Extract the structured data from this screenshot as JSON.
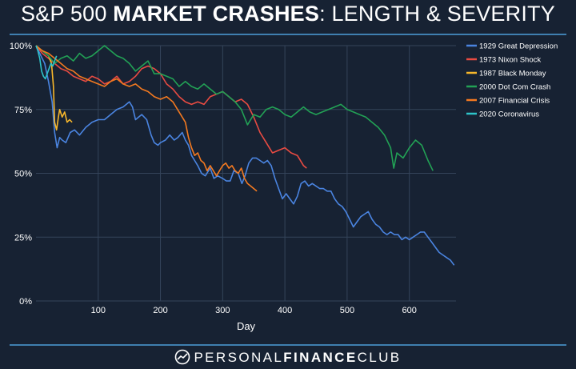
{
  "title": {
    "part1": "S&P 500 ",
    "part2": "MARKET CRASHES",
    "part3": ": LENGTH & SEVERITY"
  },
  "footer": {
    "brand_light1": "PERSONAL",
    "brand_bold": "FINANCE",
    "brand_light2": "CLUB"
  },
  "chart_data": {
    "type": "line",
    "title": "S&P 500 MARKET CRASHES: LENGTH & SEVERITY",
    "xlabel": "Day",
    "ylabel": "",
    "xlim": [
      0,
      675
    ],
    "ylim": [
      0,
      100
    ],
    "x_ticks": [
      100,
      200,
      300,
      400,
      500,
      600
    ],
    "y_ticks": [
      0,
      25,
      50,
      75,
      100
    ],
    "y_tick_labels": [
      "0%",
      "25%",
      "50%",
      "75%",
      "100%"
    ],
    "grid": true,
    "legend_position": "right",
    "series": [
      {
        "name": "1929 Great Depression",
        "color": "#4a84e0",
        "points": [
          [
            0,
            100
          ],
          [
            8,
            96
          ],
          [
            14,
            93
          ],
          [
            20,
            86
          ],
          [
            26,
            78
          ],
          [
            30,
            66
          ],
          [
            34,
            60
          ],
          [
            38,
            64
          ],
          [
            42,
            63
          ],
          [
            48,
            62
          ],
          [
            55,
            66
          ],
          [
            62,
            67
          ],
          [
            70,
            65
          ],
          [
            80,
            68
          ],
          [
            90,
            70
          ],
          [
            100,
            71
          ],
          [
            110,
            71
          ],
          [
            120,
            73
          ],
          [
            130,
            75
          ],
          [
            140,
            76
          ],
          [
            150,
            78
          ],
          [
            155,
            76
          ],
          [
            160,
            71
          ],
          [
            165,
            72
          ],
          [
            170,
            73
          ],
          [
            178,
            71
          ],
          [
            185,
            65
          ],
          [
            190,
            62
          ],
          [
            196,
            61
          ],
          [
            200,
            62
          ],
          [
            208,
            63
          ],
          [
            215,
            65
          ],
          [
            222,
            63
          ],
          [
            228,
            64
          ],
          [
            235,
            66
          ],
          [
            240,
            63
          ],
          [
            245,
            61
          ],
          [
            250,
            57
          ],
          [
            255,
            55
          ],
          [
            260,
            53
          ],
          [
            266,
            50
          ],
          [
            272,
            49
          ],
          [
            280,
            52
          ],
          [
            286,
            48
          ],
          [
            292,
            49
          ],
          [
            300,
            48
          ],
          [
            306,
            47
          ],
          [
            312,
            47
          ],
          [
            318,
            51
          ],
          [
            325,
            50
          ],
          [
            331,
            46
          ],
          [
            336,
            49
          ],
          [
            342,
            54
          ],
          [
            348,
            56
          ],
          [
            354,
            56
          ],
          [
            360,
            55
          ],
          [
            366,
            54
          ],
          [
            372,
            55
          ],
          [
            378,
            53
          ],
          [
            384,
            48
          ],
          [
            390,
            44
          ],
          [
            396,
            40
          ],
          [
            402,
            42
          ],
          [
            408,
            40
          ],
          [
            414,
            38
          ],
          [
            420,
            41
          ],
          [
            426,
            46
          ],
          [
            432,
            47
          ],
          [
            438,
            45
          ],
          [
            444,
            46
          ],
          [
            450,
            45
          ],
          [
            456,
            44
          ],
          [
            462,
            44
          ],
          [
            468,
            43
          ],
          [
            474,
            43
          ],
          [
            480,
            40
          ],
          [
            486,
            38
          ],
          [
            492,
            37
          ],
          [
            498,
            35
          ],
          [
            504,
            32
          ],
          [
            510,
            29
          ],
          [
            516,
            31
          ],
          [
            522,
            33
          ],
          [
            528,
            34
          ],
          [
            534,
            35
          ],
          [
            540,
            32
          ],
          [
            546,
            30
          ],
          [
            552,
            29
          ],
          [
            558,
            27
          ],
          [
            564,
            26
          ],
          [
            570,
            27
          ],
          [
            576,
            26
          ],
          [
            582,
            26
          ],
          [
            588,
            24
          ],
          [
            594,
            25
          ],
          [
            600,
            24
          ],
          [
            606,
            25
          ],
          [
            612,
            26
          ],
          [
            618,
            27
          ],
          [
            624,
            27
          ],
          [
            630,
            25
          ],
          [
            636,
            23
          ],
          [
            642,
            21
          ],
          [
            648,
            19
          ],
          [
            654,
            18
          ],
          [
            660,
            17
          ],
          [
            666,
            16
          ],
          [
            672,
            14
          ]
        ]
      },
      {
        "name": "1973 Nixon Shock",
        "color": "#e94b42",
        "points": [
          [
            0,
            100
          ],
          [
            10,
            97
          ],
          [
            20,
            95
          ],
          [
            30,
            93
          ],
          [
            40,
            91
          ],
          [
            50,
            90
          ],
          [
            60,
            88
          ],
          [
            70,
            87
          ],
          [
            80,
            86
          ],
          [
            90,
            88
          ],
          [
            100,
            87
          ],
          [
            110,
            85
          ],
          [
            120,
            86
          ],
          [
            130,
            88
          ],
          [
            140,
            85
          ],
          [
            150,
            86
          ],
          [
            160,
            88
          ],
          [
            170,
            91
          ],
          [
            180,
            92
          ],
          [
            190,
            91
          ],
          [
            200,
            89
          ],
          [
            210,
            85
          ],
          [
            220,
            83
          ],
          [
            230,
            80
          ],
          [
            240,
            78
          ],
          [
            250,
            77
          ],
          [
            260,
            78
          ],
          [
            270,
            77
          ],
          [
            280,
            80
          ],
          [
            290,
            81
          ],
          [
            300,
            82
          ],
          [
            310,
            80
          ],
          [
            320,
            78
          ],
          [
            330,
            79
          ],
          [
            340,
            77
          ],
          [
            350,
            72
          ],
          [
            360,
            66
          ],
          [
            370,
            62
          ],
          [
            380,
            58
          ],
          [
            390,
            59
          ],
          [
            400,
            60
          ],
          [
            410,
            58
          ],
          [
            420,
            57
          ],
          [
            430,
            53
          ],
          [
            435,
            52
          ]
        ]
      },
      {
        "name": "1987 Black Monday",
        "color": "#f7b72b",
        "points": [
          [
            0,
            100
          ],
          [
            5,
            99
          ],
          [
            10,
            98
          ],
          [
            15,
            97
          ],
          [
            20,
            96
          ],
          [
            25,
            93
          ],
          [
            28,
            84
          ],
          [
            30,
            70
          ],
          [
            33,
            67
          ],
          [
            36,
            72
          ],
          [
            38,
            75
          ],
          [
            42,
            72
          ],
          [
            46,
            74
          ],
          [
            50,
            70
          ],
          [
            54,
            71
          ],
          [
            58,
            70
          ]
        ]
      },
      {
        "name": "2000 Dot Com Crash",
        "color": "#22a155",
        "points": [
          [
            0,
            100
          ],
          [
            10,
            98
          ],
          [
            20,
            96
          ],
          [
            30,
            93
          ],
          [
            40,
            95
          ],
          [
            50,
            96
          ],
          [
            60,
            94
          ],
          [
            70,
            97
          ],
          [
            80,
            95
          ],
          [
            90,
            96
          ],
          [
            100,
            98
          ],
          [
            110,
            100
          ],
          [
            120,
            98
          ],
          [
            130,
            96
          ],
          [
            140,
            95
          ],
          [
            150,
            93
          ],
          [
            160,
            90
          ],
          [
            170,
            92
          ],
          [
            180,
            94
          ],
          [
            190,
            89
          ],
          [
            200,
            89
          ],
          [
            210,
            88
          ],
          [
            220,
            87
          ],
          [
            230,
            84
          ],
          [
            240,
            86
          ],
          [
            250,
            84
          ],
          [
            260,
            83
          ],
          [
            270,
            85
          ],
          [
            280,
            83
          ],
          [
            290,
            81
          ],
          [
            300,
            82
          ],
          [
            310,
            80
          ],
          [
            320,
            78
          ],
          [
            330,
            75
          ],
          [
            340,
            69
          ],
          [
            350,
            73
          ],
          [
            360,
            72
          ],
          [
            370,
            75
          ],
          [
            380,
            76
          ],
          [
            390,
            75
          ],
          [
            400,
            73
          ],
          [
            410,
            72
          ],
          [
            420,
            74
          ],
          [
            430,
            76
          ],
          [
            440,
            74
          ],
          [
            450,
            73
          ],
          [
            460,
            74
          ],
          [
            470,
            75
          ],
          [
            480,
            76
          ],
          [
            490,
            77
          ],
          [
            500,
            75
          ],
          [
            510,
            74
          ],
          [
            520,
            73
          ],
          [
            530,
            72
          ],
          [
            540,
            70
          ],
          [
            550,
            68
          ],
          [
            560,
            65
          ],
          [
            570,
            60
          ],
          [
            575,
            52
          ],
          [
            580,
            58
          ],
          [
            590,
            56
          ],
          [
            600,
            60
          ],
          [
            610,
            63
          ],
          [
            620,
            61
          ],
          [
            630,
            55
          ],
          [
            638,
            51
          ]
        ]
      },
      {
        "name": "2007 Financial Crisis",
        "color": "#f37920",
        "points": [
          [
            0,
            100
          ],
          [
            10,
            98
          ],
          [
            20,
            97
          ],
          [
            30,
            95
          ],
          [
            40,
            93
          ],
          [
            50,
            91
          ],
          [
            60,
            90
          ],
          [
            70,
            88
          ],
          [
            80,
            87
          ],
          [
            90,
            86
          ],
          [
            100,
            85
          ],
          [
            110,
            84
          ],
          [
            120,
            86
          ],
          [
            130,
            87
          ],
          [
            140,
            85
          ],
          [
            150,
            84
          ],
          [
            160,
            85
          ],
          [
            170,
            83
          ],
          [
            180,
            82
          ],
          [
            190,
            80
          ],
          [
            200,
            79
          ],
          [
            210,
            80
          ],
          [
            220,
            78
          ],
          [
            230,
            74
          ],
          [
            240,
            70
          ],
          [
            245,
            64
          ],
          [
            250,
            60
          ],
          [
            255,
            57
          ],
          [
            260,
            58
          ],
          [
            265,
            55
          ],
          [
            270,
            54
          ],
          [
            275,
            51
          ],
          [
            280,
            53
          ],
          [
            285,
            51
          ],
          [
            290,
            49
          ],
          [
            295,
            51
          ],
          [
            300,
            53
          ],
          [
            305,
            54
          ],
          [
            310,
            52
          ],
          [
            315,
            53
          ],
          [
            320,
            51
          ],
          [
            325,
            50
          ],
          [
            330,
            52
          ],
          [
            335,
            48
          ],
          [
            340,
            46
          ],
          [
            345,
            45
          ],
          [
            350,
            44
          ],
          [
            355,
            43
          ]
        ]
      },
      {
        "name": "2020 Coronavirus",
        "color": "#2ec4c9",
        "points": [
          [
            0,
            100
          ],
          [
            3,
            98
          ],
          [
            6,
            95
          ],
          [
            9,
            90
          ],
          [
            12,
            88
          ],
          [
            15,
            87
          ],
          [
            18,
            89
          ],
          [
            21,
            91
          ],
          [
            24,
            93
          ],
          [
            27,
            92
          ],
          [
            30,
            94
          ],
          [
            33,
            96
          ]
        ]
      }
    ]
  }
}
